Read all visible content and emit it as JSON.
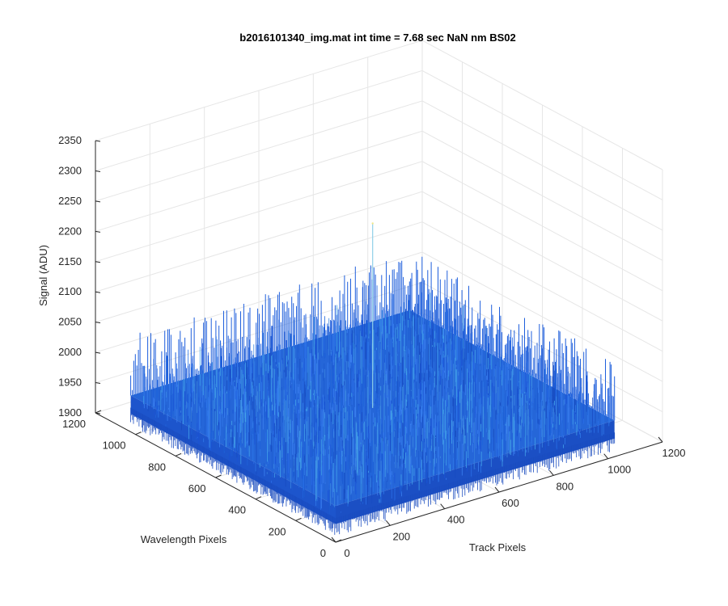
{
  "chart_data": {
    "type": "surface",
    "title": "b2016101340_img.mat int time = 7.68 sec  NaN nm BS02",
    "xlabel": "Track Pixels",
    "ylabel": "Wavelength Pixels",
    "zlabel": "Signal (ADU)",
    "xlim": [
      0,
      1200
    ],
    "ylim": [
      0,
      1200
    ],
    "zlim": [
      1900,
      2350
    ],
    "x_ticks": [
      "0",
      "200",
      "400",
      "600",
      "800",
      "1000",
      "1200"
    ],
    "y_ticks": [
      "0",
      "200",
      "400",
      "600",
      "800",
      "1000",
      "1200"
    ],
    "z_ticks": [
      "1900",
      "1950",
      "2000",
      "2050",
      "2100",
      "2150",
      "2200",
      "2250",
      "2300",
      "2350"
    ],
    "grid": true,
    "colormap": "parula",
    "surface_color": "#1f5fdc",
    "surface": {
      "x_extent": [
        0,
        1024
      ],
      "y_extent": [
        0,
        1024
      ],
      "baseline_signal": 1960,
      "noise_range": [
        1930,
        2060
      ],
      "spike": {
        "x": 512,
        "y": 512,
        "signal": 2265
      }
    }
  }
}
